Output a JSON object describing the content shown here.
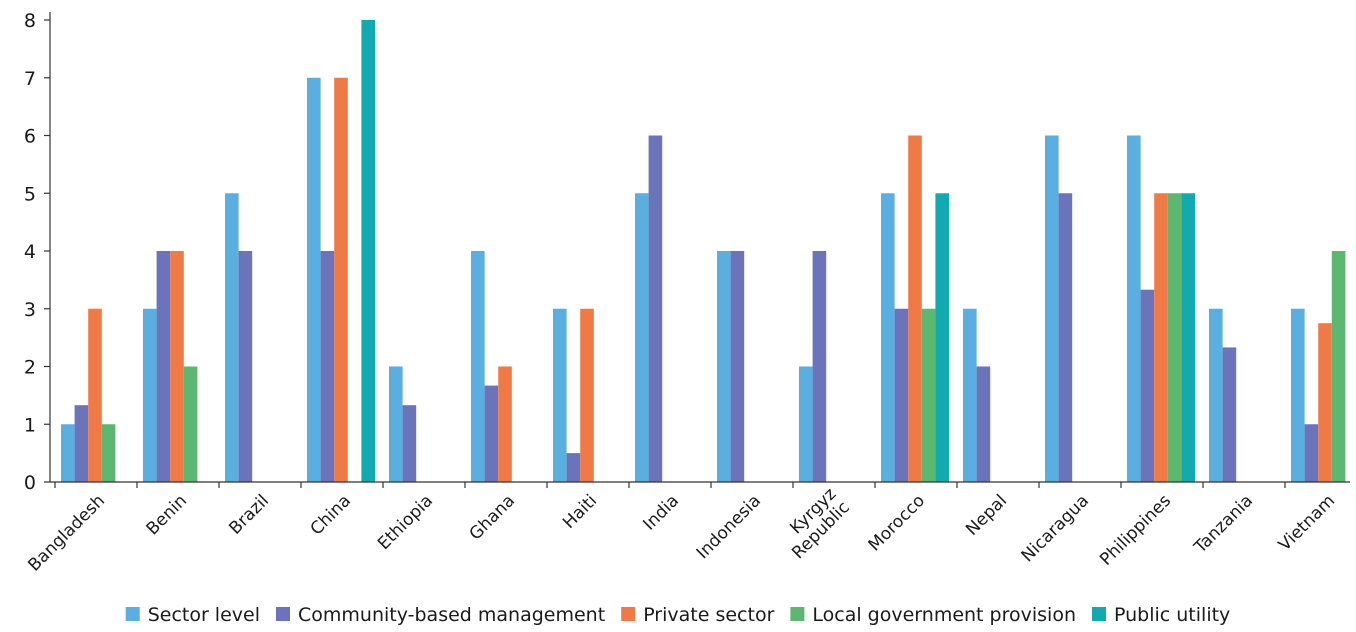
{
  "chart_data": {
    "type": "bar",
    "title": "",
    "xlabel": "",
    "ylabel": "",
    "ylim": [
      0,
      8
    ],
    "yticks": [
      0,
      1,
      2,
      3,
      4,
      5,
      6,
      7,
      8
    ],
    "grid": false,
    "legend_position": "bottom",
    "categories": [
      "Bangladesh",
      "Benin",
      "Brazil",
      "China",
      "Ethiopia",
      "Ghana",
      "Haiti",
      "India",
      "Indonesia",
      "Kyrgyz Republic",
      "Morocco",
      "Nepal",
      "Nicaragua",
      "Philippines",
      "Tanzania",
      "Vietnam"
    ],
    "category_lines": [
      [
        "Bangladesh"
      ],
      [
        "Benin"
      ],
      [
        "Brazil"
      ],
      [
        "China"
      ],
      [
        "Ethiopia"
      ],
      [
        "Ghana"
      ],
      [
        "Haiti"
      ],
      [
        "India"
      ],
      [
        "Indonesia"
      ],
      [
        "Kyrgyz",
        "Republic"
      ],
      [
        "Morocco"
      ],
      [
        "Nepal"
      ],
      [
        "Nicaragua"
      ],
      [
        "Philippines"
      ],
      [
        "Tanzania"
      ],
      [
        "Vietnam"
      ]
    ],
    "series": [
      {
        "name": "Sector level",
        "color": "#5aaee0",
        "values": [
          1,
          3,
          5,
          7,
          2,
          4,
          3,
          5,
          4,
          2,
          5,
          3,
          6,
          6,
          3,
          3
        ]
      },
      {
        "name": "Community-based management",
        "color": "#6b73ba",
        "values": [
          1.33,
          4,
          4,
          4,
          1.33,
          1.67,
          0.5,
          6,
          4,
          4,
          3,
          2,
          5,
          3.33,
          2.33,
          1
        ]
      },
      {
        "name": "Private sector",
        "color": "#f07a45",
        "values": [
          3,
          4,
          null,
          7,
          null,
          2,
          3,
          null,
          null,
          null,
          6,
          null,
          null,
          5,
          null,
          2.75
        ]
      },
      {
        "name": "Local government provision",
        "color": "#5cb871",
        "values": [
          1,
          2,
          null,
          null,
          null,
          null,
          null,
          null,
          null,
          null,
          3,
          null,
          null,
          5,
          null,
          4
        ]
      },
      {
        "name": "Public utility",
        "color": "#12aab1",
        "values": [
          null,
          null,
          null,
          8,
          null,
          null,
          null,
          null,
          null,
          null,
          5,
          null,
          null,
          5,
          null,
          null
        ]
      }
    ]
  }
}
